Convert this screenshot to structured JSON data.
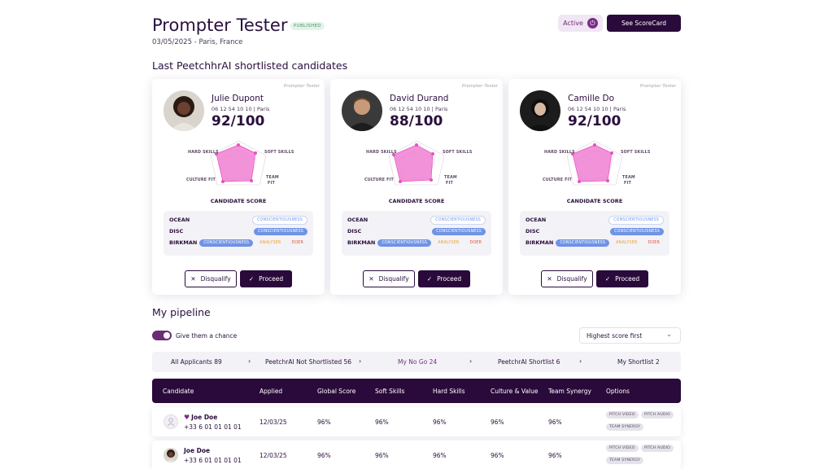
{
  "header": {
    "title": "Prompter Tester",
    "status_badge": "PUBLISHED",
    "subtitle": "03/05/2025 - Paris, France",
    "active_label": "Active",
    "scorecard_button": "See ScoreCard"
  },
  "shortlist": {
    "title": "Last PeetchhrAI shortlisted candidates",
    "card_tag": "Prompter Tester",
    "score_title": "CANDIDATE SCORE",
    "radar_labels": {
      "hard": "HARD SKILLS",
      "soft": "SOFT SKILLS",
      "culture": "CULTURE FIT",
      "team1": "TEAM",
      "team2": "FIT"
    },
    "personality_keys": {
      "ocean": "OCEAN",
      "disc": "DISC",
      "birkman": "BIRKMAN"
    },
    "pills": {
      "consc": "CONSCIENTIOUSNESS",
      "analyzer": "ANALYSER",
      "doer": "DOER"
    },
    "buttons": {
      "disqualify": "Disqualify",
      "proceed": "Proceed"
    },
    "candidates": [
      {
        "name": "Julie Dupont",
        "phone": "06 12 54 10 10 | Paris",
        "score": "92/100"
      },
      {
        "name": "David Durand",
        "phone": "06 12 54 10 10 | Paris",
        "score": "88/100"
      },
      {
        "name": "Camille Do",
        "phone": "06 12 54 10 10 | Paris",
        "score": "92/100"
      }
    ]
  },
  "pipeline": {
    "title": "My pipeline",
    "toggle_label": "Give them a chance",
    "toggle_on": true,
    "sort_value": "Highest score first",
    "funnel": [
      {
        "label": "All Applicants 89"
      },
      {
        "label": "PeetchrAI Not Shortlisted 56"
      },
      {
        "label": "My No Go 24"
      },
      {
        "label": "PeetchrAI Shortlist 6"
      },
      {
        "label": "My Shortlist 2"
      }
    ],
    "columns": [
      "Candidate",
      "Applied",
      "Global Score",
      "Soft Skills",
      "Hard Skills",
      "Culture & Value",
      "Team Synergy",
      "Options"
    ],
    "option_pills": [
      "PITCH VIDEO",
      "PITCH AUDIO",
      "TEAM SYNERGY"
    ],
    "rows": [
      {
        "name": "Joe Doe",
        "phone": "+33 6 01 01 01 01",
        "applied": "12/03/25",
        "global": "96%",
        "soft": "96%",
        "hard": "96%",
        "culture": "96%",
        "team": "96%",
        "favorite": true
      },
      {
        "name": "Joe Doe",
        "phone": "+33 6 01 01 01 01",
        "applied": "12/03/25",
        "global": "96%",
        "soft": "96%",
        "hard": "96%",
        "culture": "96%",
        "team": "96%",
        "favorite": false
      }
    ]
  },
  "colors": {
    "primary": "#2a0a3a",
    "accent": "#7a2d85",
    "radar_fill": "#f07fd2",
    "pill_blue": "#6f93e6"
  }
}
